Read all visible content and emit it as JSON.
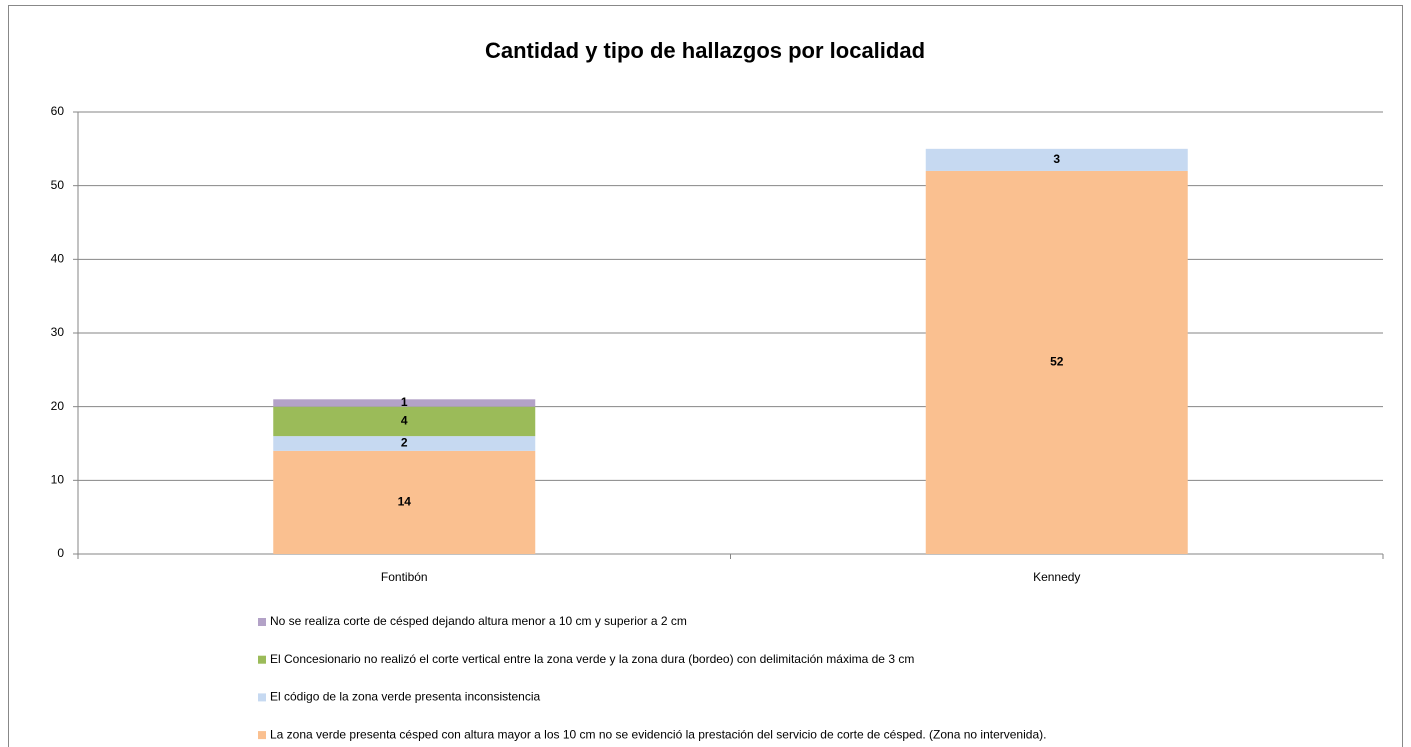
{
  "chart_data": {
    "type": "stacked_bar",
    "title": "Cantidad y tipo de hallazgos por localidad",
    "categories": [
      "Fontibón",
      "Kennedy"
    ],
    "series": [
      {
        "name": "La zona verde presenta césped con altura mayor a los 10 cm no se evidenció la prestación del servicio de corte de césped. (Zona no intervenida).",
        "color": "#fac090",
        "values": [
          14,
          52
        ]
      },
      {
        "name": "El código de la zona verde presenta inconsistencia",
        "color": "#c6d9f1",
        "values": [
          2,
          3
        ]
      },
      {
        "name": "El Concesionario no realizó el corte vertical entre la zona verde y la zona dura (bordeo) con delimitación máxima de 3 cm",
        "color": "#9bbb59",
        "values": [
          4,
          null
        ]
      },
      {
        "name": "No se realiza corte de césped dejando altura menor a 10 cm y superior a 2 cm",
        "color": "#b3a2c7",
        "values": [
          1,
          null
        ]
      }
    ],
    "ylim": [
      0,
      60
    ],
    "yticks": [
      0,
      10,
      20,
      30,
      40,
      50,
      60
    ],
    "grid": true,
    "legend": "bottom"
  }
}
